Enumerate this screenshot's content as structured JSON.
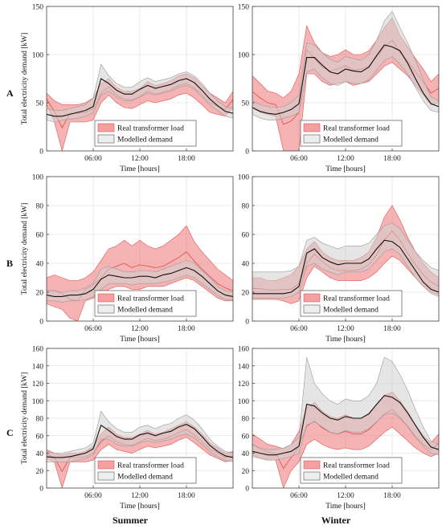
{
  "columns": [
    "Summer",
    "Winter"
  ],
  "rows": [
    "A",
    "B",
    "C"
  ],
  "legend": [
    "Real transformer load",
    "Modelled demand"
  ],
  "colors": {
    "real_band": "#f08080",
    "real_line": "#e05555",
    "model_band": "#cfcfcf",
    "model_band_edge": "#9a9a9a",
    "model_line": "#111111",
    "grid": "#e4e4e4",
    "axis": "#444444"
  },
  "chart_data": [
    {
      "type": "area",
      "row": "A",
      "column": "Summer",
      "xlabel": "Time [hours]",
      "ylabel": "Total electricity demand [kW]",
      "xlim": [
        0,
        24
      ],
      "ylim": [
        0,
        150
      ],
      "xticks": [
        6,
        12,
        18
      ],
      "xtick_labels": [
        "06:00",
        "12:00",
        "18:00"
      ],
      "yticks": [
        0,
        50,
        100,
        150
      ],
      "grid": true,
      "legend_position": "bottom-center",
      "x": [
        0,
        1,
        2,
        3,
        4,
        5,
        6,
        7,
        8,
        9,
        10,
        11,
        12,
        13,
        14,
        15,
        16,
        17,
        18,
        19,
        20,
        21,
        22,
        23,
        24
      ],
      "series": [
        {
          "name": "Real transformer load",
          "kind": "band",
          "lower": [
            48,
            30,
            0,
            30,
            30,
            30,
            32,
            50,
            58,
            50,
            45,
            44,
            48,
            52,
            50,
            52,
            54,
            58,
            60,
            55,
            48,
            40,
            38,
            36,
            45
          ],
          "upper": [
            60,
            52,
            48,
            48,
            48,
            50,
            55,
            70,
            75,
            66,
            62,
            62,
            65,
            72,
            68,
            70,
            73,
            78,
            80,
            76,
            68,
            60,
            55,
            50,
            62
          ]
        },
        {
          "name": "Modelled demand",
          "kind": "band",
          "lower": [
            32,
            30,
            32,
            33,
            34,
            36,
            40,
            58,
            62,
            56,
            52,
            52,
            56,
            60,
            58,
            60,
            62,
            66,
            68,
            64,
            56,
            48,
            42,
            36,
            34
          ],
          "upper": [
            44,
            42,
            42,
            44,
            46,
            48,
            55,
            90,
            78,
            70,
            66,
            66,
            72,
            76,
            72,
            74,
            76,
            80,
            82,
            78,
            70,
            60,
            52,
            46,
            44
          ]
        },
        {
          "name": "Modelled demand",
          "kind": "mean",
          "values": [
            38,
            36,
            36,
            38,
            40,
            42,
            46,
            75,
            70,
            63,
            59,
            59,
            64,
            68,
            65,
            67,
            69,
            73,
            75,
            71,
            63,
            54,
            47,
            41,
            39
          ]
        }
      ]
    },
    {
      "type": "area",
      "row": "A",
      "column": "Winter",
      "xlabel": "Time [hours]",
      "ylabel": "",
      "xlim": [
        0,
        24
      ],
      "ylim": [
        0,
        150
      ],
      "xticks": [
        6,
        12,
        18
      ],
      "xtick_labels": [
        "06:00",
        "12:00",
        "18:00"
      ],
      "yticks": [
        0,
        50,
        100,
        150
      ],
      "grid": true,
      "legend_position": "bottom-center",
      "x": [
        0,
        1,
        2,
        3,
        4,
        5,
        6,
        7,
        8,
        9,
        10,
        11,
        12,
        13,
        14,
        15,
        16,
        17,
        18,
        19,
        20,
        21,
        22,
        23,
        24
      ],
      "series": [
        {
          "name": "Real transformer load",
          "kind": "band",
          "lower": [
            45,
            40,
            38,
            36,
            0,
            0,
            0,
            80,
            80,
            72,
            68,
            70,
            72,
            68,
            70,
            72,
            80,
            88,
            92,
            85,
            78,
            68,
            58,
            48,
            50
          ],
          "upper": [
            78,
            70,
            62,
            60,
            55,
            62,
            80,
            130,
            112,
            102,
            98,
            100,
            105,
            100,
            100,
            104,
            115,
            128,
            138,
            120,
            108,
            96,
            85,
            72,
            80
          ]
        },
        {
          "name": "Modelled demand",
          "kind": "band",
          "lower": [
            38,
            34,
            32,
            32,
            34,
            36,
            40,
            82,
            85,
            76,
            70,
            68,
            72,
            70,
            70,
            74,
            84,
            94,
            98,
            90,
            80,
            66,
            52,
            42,
            40
          ],
          "upper": [
            52,
            48,
            46,
            45,
            46,
            50,
            58,
            112,
            110,
            102,
            95,
            92,
            98,
            96,
            94,
            100,
            115,
            135,
            145,
            128,
            112,
            94,
            74,
            56,
            52
          ]
        },
        {
          "name": "Modelled demand",
          "kind": "mean",
          "values": [
            45,
            41,
            39,
            38,
            40,
            43,
            49,
            97,
            97,
            89,
            82,
            80,
            85,
            83,
            82,
            87,
            99,
            110,
            108,
            104,
            91,
            75,
            60,
            49,
            46
          ]
        }
      ]
    },
    {
      "type": "area",
      "row": "B",
      "column": "Summer",
      "xlabel": "Time [hours]",
      "ylabel": "Total electricity demand [kW]",
      "xlim": [
        0,
        24
      ],
      "ylim": [
        0,
        100
      ],
      "xticks": [
        6,
        12,
        18
      ],
      "xtick_labels": [
        "06:00",
        "12:00",
        "18:00"
      ],
      "yticks": [
        0,
        20,
        40,
        60,
        80,
        100
      ],
      "grid": true,
      "legend_position": "bottom-center",
      "x": [
        0,
        1,
        2,
        3,
        4,
        5,
        6,
        7,
        8,
        9,
        10,
        11,
        12,
        13,
        14,
        15,
        16,
        17,
        18,
        19,
        20,
        21,
        22,
        23,
        24
      ],
      "series": [
        {
          "name": "Real transformer load",
          "kind": "band",
          "lower": [
            12,
            10,
            8,
            2,
            0,
            14,
            16,
            18,
            22,
            24,
            24,
            22,
            22,
            24,
            24,
            24,
            26,
            28,
            30,
            28,
            24,
            20,
            16,
            14,
            14
          ],
          "upper": [
            30,
            32,
            30,
            28,
            28,
            30,
            34,
            42,
            50,
            52,
            56,
            52,
            56,
            52,
            50,
            52,
            56,
            60,
            66,
            55,
            48,
            42,
            36,
            32,
            28
          ]
        },
        {
          "name": "Modelled demand",
          "kind": "band",
          "lower": [
            14,
            14,
            13,
            14,
            14,
            15,
            17,
            22,
            26,
            26,
            26,
            25,
            26,
            26,
            26,
            27,
            28,
            30,
            32,
            30,
            26,
            22,
            18,
            15,
            15
          ],
          "upper": [
            21,
            21,
            20,
            21,
            21,
            23,
            26,
            36,
            38,
            36,
            34,
            34,
            35,
            35,
            34,
            36,
            38,
            40,
            42,
            40,
            35,
            30,
            24,
            21,
            20
          ]
        },
        {
          "name": "Modelled demand",
          "kind": "mean",
          "values": [
            18,
            17,
            17,
            18,
            18,
            19,
            22,
            29,
            32,
            31,
            30,
            30,
            31,
            31,
            30,
            32,
            33,
            35,
            37,
            35,
            31,
            26,
            21,
            18,
            17
          ]
        }
      ]
    },
    {
      "type": "area",
      "row": "B",
      "column": "Winter",
      "xlabel": "Time [hours]",
      "ylabel": "",
      "xlim": [
        0,
        24
      ],
      "ylim": [
        0,
        100
      ],
      "xticks": [
        6,
        12,
        18
      ],
      "xtick_labels": [
        "06:00",
        "12:00",
        "18:00"
      ],
      "yticks": [
        0,
        20,
        40,
        60,
        80,
        100
      ],
      "grid": true,
      "legend_position": "bottom-center",
      "x": [
        0,
        1,
        2,
        3,
        4,
        5,
        6,
        7,
        8,
        9,
        10,
        11,
        12,
        13,
        14,
        15,
        16,
        17,
        18,
        19,
        20,
        21,
        22,
        23,
        24
      ],
      "series": [
        {
          "name": "Real transformer load",
          "kind": "band",
          "lower": [
            15,
            15,
            15,
            15,
            14,
            12,
            14,
            30,
            38,
            34,
            30,
            28,
            28,
            28,
            28,
            30,
            34,
            40,
            45,
            42,
            36,
            30,
            24,
            20,
            18
          ],
          "upper": [
            30,
            30,
            28,
            28,
            30,
            32,
            38,
            50,
            55,
            48,
            44,
            42,
            42,
            42,
            44,
            48,
            58,
            72,
            80,
            70,
            58,
            48,
            40,
            34,
            30
          ]
        },
        {
          "name": "Modelled demand",
          "kind": "band",
          "lower": [
            16,
            16,
            16,
            16,
            16,
            17,
            20,
            38,
            40,
            36,
            34,
            32,
            34,
            34,
            34,
            36,
            42,
            48,
            50,
            46,
            38,
            30,
            24,
            19,
            17
          ]
        },
        {
          "name": "Modelled demand",
          "kind": "mean",
          "values": [
            19,
            19,
            19,
            19,
            19,
            20,
            24,
            47,
            50,
            44,
            41,
            39,
            40,
            40,
            40,
            43,
            50,
            56,
            55,
            51,
            43,
            35,
            27,
            22,
            20
          ]
        }
      ]
    },
    {
      "type": "area",
      "row": "C",
      "column": "Summer",
      "xlabel": "Time [hours]",
      "ylabel": "Total electricity demand [kW]",
      "xlim": [
        0,
        24
      ],
      "ylim": [
        0,
        160
      ],
      "xticks": [
        6,
        12,
        18
      ],
      "xtick_labels": [
        "06:00",
        "12:00",
        "18:00"
      ],
      "yticks": [
        0,
        20,
        40,
        60,
        80,
        100,
        120,
        140,
        160
      ],
      "grid": true,
      "legend_position": "bottom-center",
      "x": [
        0,
        1,
        2,
        3,
        4,
        5,
        6,
        7,
        8,
        9,
        10,
        11,
        12,
        13,
        14,
        15,
        16,
        17,
        18,
        19,
        20,
        21,
        22,
        23,
        24
      ],
      "series": [
        {
          "name": "Real transformer load",
          "kind": "band",
          "lower": [
            34,
            30,
            0,
            30,
            30,
            30,
            32,
            44,
            50,
            44,
            42,
            40,
            44,
            48,
            46,
            48,
            50,
            55,
            58,
            52,
            45,
            38,
            34,
            30,
            32
          ],
          "upper": [
            44,
            40,
            38,
            40,
            40,
            42,
            48,
            62,
            70,
            62,
            58,
            58,
            62,
            66,
            62,
            64,
            68,
            72,
            76,
            70,
            62,
            52,
            46,
            40,
            42
          ]
        },
        {
          "name": "Modelled demand",
          "kind": "band",
          "lower": [
            30,
            30,
            30,
            30,
            32,
            34,
            38,
            56,
            56,
            50,
            48,
            48,
            52,
            54,
            52,
            54,
            56,
            60,
            62,
            58,
            50,
            42,
            36,
            32,
            30
          ],
          "upper": [
            42,
            40,
            40,
            42,
            44,
            46,
            52,
            88,
            76,
            68,
            64,
            64,
            70,
            72,
            68,
            72,
            74,
            80,
            84,
            78,
            68,
            56,
            48,
            42,
            40
          ]
        },
        {
          "name": "Modelled demand",
          "kind": "mean",
          "values": [
            36,
            35,
            35,
            36,
            38,
            40,
            45,
            72,
            66,
            59,
            56,
            56,
            61,
            63,
            60,
            63,
            65,
            70,
            73,
            68,
            59,
            49,
            42,
            37,
            35
          ]
        }
      ]
    },
    {
      "type": "area",
      "row": "C",
      "column": "Winter",
      "xlabel": "Time [hours]",
      "ylabel": "",
      "xlim": [
        0,
        24
      ],
      "ylim": [
        0,
        160
      ],
      "xticks": [
        6,
        12,
        18
      ],
      "xtick_labels": [
        "06:00",
        "12:00",
        "18:00"
      ],
      "yticks": [
        0,
        20,
        40,
        60,
        80,
        100,
        120,
        140,
        160
      ],
      "grid": true,
      "legend_position": "bottom-center",
      "x": [
        0,
        1,
        2,
        3,
        4,
        5,
        6,
        7,
        8,
        9,
        10,
        11,
        12,
        13,
        14,
        15,
        16,
        17,
        18,
        19,
        20,
        21,
        22,
        23,
        24
      ],
      "series": [
        {
          "name": "Real transformer load",
          "kind": "band",
          "lower": [
            38,
            34,
            32,
            32,
            0,
            20,
            30,
            50,
            56,
            50,
            46,
            44,
            46,
            44,
            44,
            48,
            56,
            64,
            70,
            62,
            54,
            46,
            40,
            36,
            40
          ],
          "upper": [
            62,
            56,
            50,
            48,
            45,
            50,
            65,
            92,
            98,
            88,
            82,
            80,
            84,
            80,
            80,
            86,
            96,
            106,
            110,
            100,
            88,
            72,
            60,
            52,
            62
          ]
        },
        {
          "name": "Modelled demand",
          "kind": "band",
          "lower": [
            36,
            34,
            32,
            32,
            34,
            36,
            40,
            72,
            76,
            70,
            64,
            62,
            66,
            64,
            64,
            68,
            76,
            84,
            86,
            80,
            70,
            58,
            48,
            40,
            38
          ],
          "upper": [
            50,
            46,
            44,
            44,
            46,
            50,
            58,
            150,
            120,
            108,
            100,
            96,
            102,
            100,
            100,
            106,
            120,
            150,
            145,
            130,
            112,
            90,
            70,
            54,
            50
          ]
        },
        {
          "name": "Modelled demand",
          "kind": "mean",
          "values": [
            42,
            40,
            38,
            38,
            40,
            42,
            48,
            96,
            94,
            86,
            80,
            78,
            82,
            80,
            80,
            85,
            96,
            106,
            104,
            98,
            86,
            72,
            58,
            47,
            44
          ]
        }
      ]
    }
  ]
}
